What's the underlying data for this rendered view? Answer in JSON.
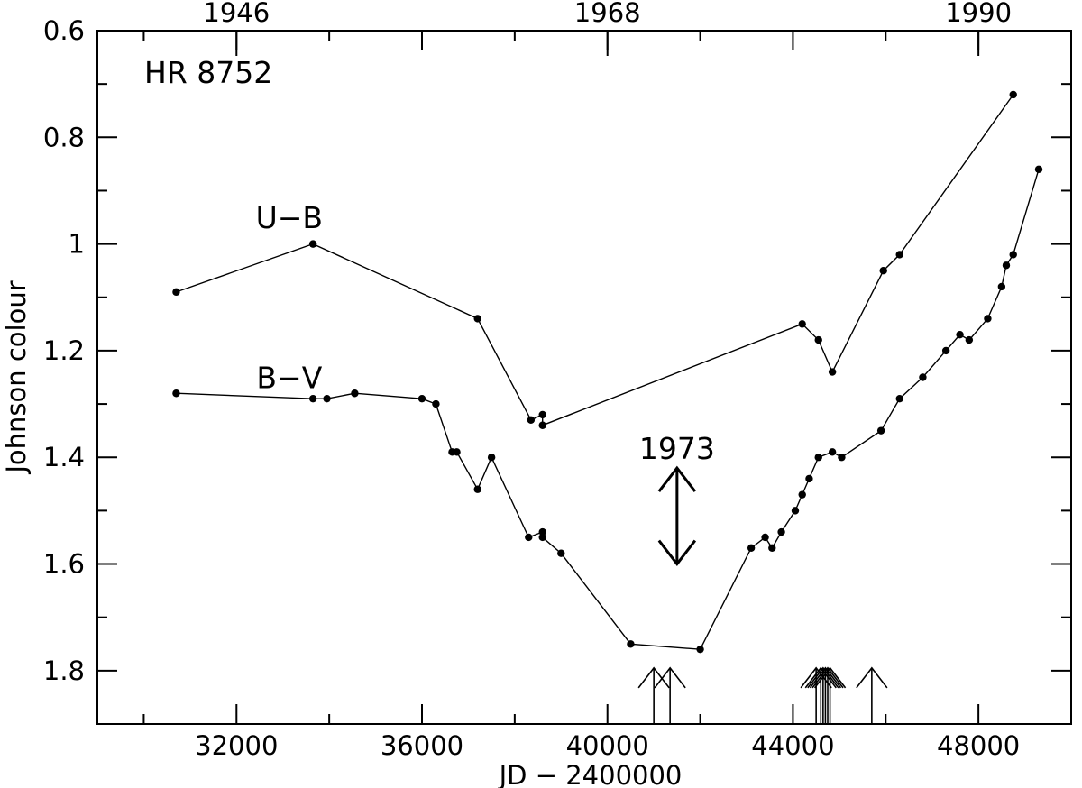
{
  "chart_data": {
    "type": "line",
    "title": "HR 8752",
    "xlabel": "JD  −  2400000",
    "ylabel": "Johnson colour",
    "xlim": [
      29000,
      50000
    ],
    "ylim": [
      0.6,
      1.9
    ],
    "y_inverted": true,
    "x_ticks_major": [
      32000,
      36000,
      40000,
      44000,
      48000
    ],
    "x_ticks_minor": [
      30000,
      34000,
      38000,
      42000,
      46000,
      50000
    ],
    "x_tick_labels": [
      "32000",
      "36000",
      "40000",
      "44000",
      "48000"
    ],
    "y_ticks_major": [
      0.6,
      0.8,
      1.0,
      1.2,
      1.4,
      1.6,
      1.8
    ],
    "y_tick_labels": [
      "0.6",
      "0.8",
      "1",
      "1.2",
      "1.4",
      "1.6",
      "1.8"
    ],
    "y_ticks_minor": [
      0.7,
      0.9,
      1.1,
      1.3,
      1.5,
      1.7
    ],
    "top_axis": {
      "years": [
        {
          "label": "1946",
          "jd": 32000
        },
        {
          "label": "1968",
          "jd": 40000
        },
        {
          "label": "1990",
          "jd": 48000
        }
      ]
    },
    "series": [
      {
        "name": "U−B",
        "label_anchor": {
          "x": 31000,
          "y": 0.96
        },
        "points": [
          [
            30700,
            1.09
          ],
          [
            33650,
            1.0
          ],
          [
            37200,
            1.14
          ],
          [
            38350,
            1.33
          ],
          [
            38600,
            1.32
          ],
          [
            38600,
            1.34
          ],
          [
            44200,
            1.15
          ],
          [
            44550,
            1.18
          ],
          [
            44850,
            1.24
          ],
          [
            45950,
            1.05
          ],
          [
            46300,
            1.02
          ],
          [
            48750,
            0.72
          ]
        ]
      },
      {
        "name": "B−V",
        "label_anchor": {
          "x": 31000,
          "y": 1.26
        },
        "points": [
          [
            30700,
            1.28
          ],
          [
            33650,
            1.29
          ],
          [
            33950,
            1.29
          ],
          [
            34550,
            1.28
          ],
          [
            36000,
            1.29
          ],
          [
            36300,
            1.3
          ],
          [
            36650,
            1.39
          ],
          [
            36750,
            1.39
          ],
          [
            37200,
            1.46
          ],
          [
            37500,
            1.4
          ],
          [
            38300,
            1.55
          ],
          [
            38600,
            1.54
          ],
          [
            38600,
            1.55
          ],
          [
            39000,
            1.58
          ],
          [
            40500,
            1.75
          ],
          [
            42000,
            1.76
          ],
          [
            43100,
            1.57
          ],
          [
            43400,
            1.55
          ],
          [
            43550,
            1.57
          ],
          [
            43750,
            1.54
          ],
          [
            44050,
            1.5
          ],
          [
            44200,
            1.47
          ],
          [
            44350,
            1.44
          ],
          [
            44550,
            1.4
          ],
          [
            44850,
            1.39
          ],
          [
            45050,
            1.4
          ],
          [
            45900,
            1.35
          ],
          [
            46300,
            1.29
          ],
          [
            46800,
            1.25
          ],
          [
            47300,
            1.2
          ],
          [
            47600,
            1.17
          ],
          [
            47800,
            1.18
          ],
          [
            48200,
            1.14
          ],
          [
            48500,
            1.08
          ],
          [
            48600,
            1.04
          ],
          [
            48750,
            1.02
          ],
          [
            49300,
            0.86
          ]
        ]
      }
    ],
    "annotations": [
      {
        "text": "1973",
        "x": 41500,
        "y": 1.42,
        "kind": "double-arrow",
        "from_y": 1.42,
        "to_y": 1.6
      }
    ],
    "event_arrows_jd": [
      41000,
      41350,
      44500,
      44600,
      44650,
      44700,
      44750,
      44800,
      45700
    ]
  }
}
